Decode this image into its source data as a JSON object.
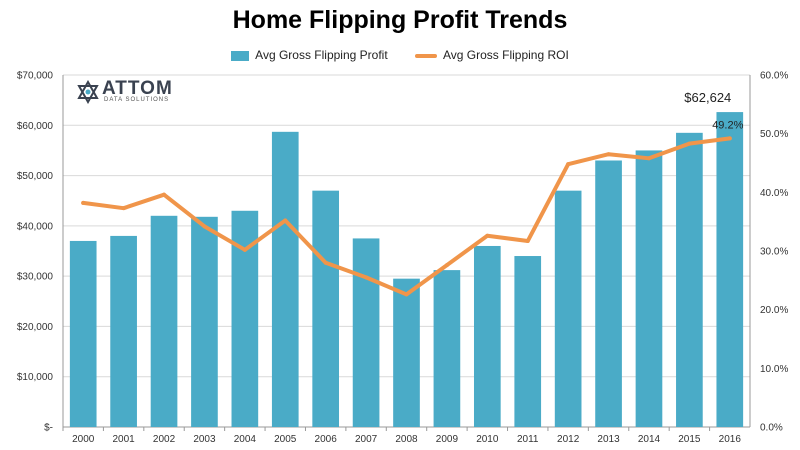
{
  "colors": {
    "bar": "#4aabc7",
    "line": "#f0954a",
    "grid": "#d9d9d9",
    "axis": "#999999",
    "text": "#333333"
  },
  "logo": {
    "word": "ATTOM",
    "sub": "DATA SOLUTIONS"
  },
  "chart_data": {
    "type": "bar",
    "title": "Home Flipping Profit Trends",
    "categories": [
      "2000",
      "2001",
      "2002",
      "2003",
      "2004",
      "2005",
      "2006",
      "2007",
      "2008",
      "2009",
      "2010",
      "2011",
      "2012",
      "2013",
      "2014",
      "2015",
      "2016"
    ],
    "series": [
      {
        "name": "Avg Gross Flipping Profit",
        "kind": "bar",
        "axis": "left",
        "values": [
          37000,
          38000,
          42000,
          41800,
          43000,
          58700,
          47000,
          37500,
          29500,
          31200,
          36000,
          34000,
          47000,
          53000,
          55000,
          58500,
          62624
        ]
      },
      {
        "name": "Avg Gross Flipping ROI",
        "kind": "line",
        "axis": "right",
        "values": [
          38.2,
          37.3,
          39.6,
          34.2,
          30.2,
          35.2,
          28.0,
          25.5,
          22.6,
          27.6,
          32.6,
          31.7,
          44.8,
          46.5,
          45.8,
          48.3,
          49.2
        ]
      }
    ],
    "ylim_left": [
      0,
      70000
    ],
    "yticks_left": [
      "$-",
      "$10,000",
      "$20,000",
      "$30,000",
      "$40,000",
      "$50,000",
      "$60,000",
      "$70,000"
    ],
    "ylim_right": [
      0,
      60
    ],
    "yticks_right": [
      "0.0%",
      "10.0%",
      "20.0%",
      "30.0%",
      "40.0%",
      "50.0%",
      "60.0%"
    ],
    "annotations": [
      {
        "text": "$62,624",
        "category": "2016",
        "series": "Avg Gross Flipping Profit"
      },
      {
        "text": "49.2%",
        "category": "2016",
        "series": "Avg Gross Flipping ROI"
      }
    ],
    "legend_position": "top",
    "grid": true
  }
}
